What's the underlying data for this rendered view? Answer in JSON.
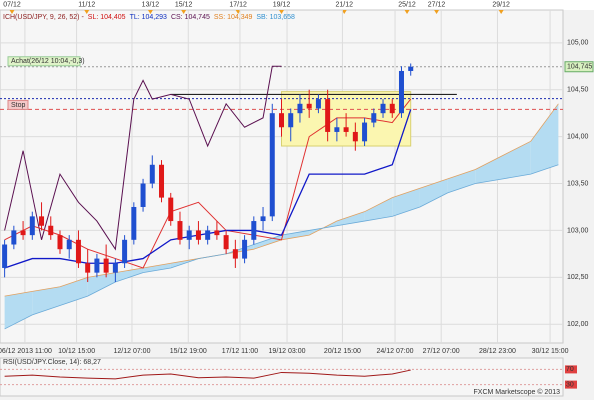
{
  "chart_data": {
    "type": "candlestick",
    "header": [
      {
        "text": "ICH(USD/JPY, 9, 26, 52) -",
        "color": "#8b1a1a"
      },
      {
        "text": "SL: 104,405",
        "color": "#d01010"
      },
      {
        "text": "TL: 104,293",
        "color": "#1030c0"
      },
      {
        "text": "CS: 104,745",
        "color": "#5a1050"
      },
      {
        "text": "SS: 104,349",
        "color": "#e08020"
      },
      {
        "text": "SB: 103,658",
        "color": "#3090d0"
      }
    ],
    "top_dates": {
      "x": [
        0.8,
        8.9,
        15.8,
        19.4,
        25.3,
        30,
        36.8,
        43.6,
        46.8,
        53.8
      ],
      "labels": [
        "07/12",
        "11/12",
        "13/12",
        "15/12",
        "17/12",
        "19/12",
        "21/12",
        "25/12",
        "27/12",
        "29/12"
      ]
    },
    "xlim": [
      -0.5,
      60.5
    ],
    "xticks": [
      {
        "value": 2.2,
        "label": "06/12 2013 11:00"
      },
      {
        "value": 7.8,
        "label": "10/12 15:00"
      },
      {
        "value": 13.8,
        "label": "12/12 07:00"
      },
      {
        "value": 19.9,
        "label": "15/12 19:00"
      },
      {
        "value": 25.5,
        "label": "17/12 11:00"
      },
      {
        "value": 30.6,
        "label": "19/12 03:00"
      },
      {
        "value": 36.6,
        "label": "20/12 15:00"
      },
      {
        "value": 42.3,
        "label": "24/12 07:00"
      },
      {
        "value": 47.3,
        "label": "27/12 07:00"
      },
      {
        "value": 53.4,
        "label": "28/12 23:00"
      },
      {
        "value": 59.1,
        "label": "30/12 15:00"
      }
    ],
    "ylim": [
      101.8,
      105.35
    ],
    "yticks": [
      {
        "value": 102,
        "label": "102,00"
      },
      {
        "value": 102.5,
        "label": "102,50"
      },
      {
        "value": 103,
        "label": "103,00"
      },
      {
        "value": 103.5,
        "label": "103,50"
      },
      {
        "value": 104,
        "label": "104,00"
      },
      {
        "value": 104.5,
        "label": "104,50"
      },
      {
        "value": 105,
        "label": "105,00"
      }
    ],
    "grid": true,
    "up_color": "#1f4fd0",
    "down_color": "#e01818",
    "x": [
      0,
      1,
      2,
      3,
      4,
      5,
      6,
      7,
      8,
      9,
      10,
      11,
      12,
      13,
      14,
      15,
      16,
      17,
      18,
      19,
      20,
      21,
      22,
      23,
      24,
      25,
      26,
      27,
      28,
      29,
      30,
      31,
      32,
      33,
      34,
      35,
      36,
      37,
      38,
      39,
      40,
      41,
      42,
      43,
      44
    ],
    "open": [
      102.6,
      102.85,
      103.0,
      102.95,
      103.15,
      103.05,
      102.95,
      102.8,
      102.9,
      102.65,
      102.55,
      102.7,
      102.55,
      102.65,
      102.9,
      103.25,
      103.5,
      103.7,
      103.35,
      103.1,
      102.9,
      103.0,
      102.9,
      103.0,
      102.95,
      102.8,
      102.7,
      102.9,
      103.1,
      103.15,
      104.25,
      104.1,
      104.25,
      104.35,
      104.3,
      104.4,
      104.05,
      104.1,
      104.05,
      103.95,
      104.15,
      104.25,
      104.35,
      104.25,
      104.7
    ],
    "high": [
      102.9,
      103.05,
      103.1,
      103.2,
      103.3,
      103.15,
      103.0,
      102.95,
      103.0,
      102.8,
      102.75,
      102.85,
      102.7,
      102.95,
      103.3,
      103.55,
      103.8,
      103.75,
      103.4,
      103.2,
      103.05,
      103.1,
      103.05,
      103.1,
      103.0,
      102.9,
      102.95,
      103.15,
      103.25,
      104.35,
      104.4,
      104.3,
      104.45,
      104.5,
      104.45,
      104.5,
      104.2,
      104.25,
      104.15,
      104.2,
      104.3,
      104.4,
      104.4,
      104.75,
      104.78
    ],
    "low": [
      102.5,
      102.8,
      102.9,
      102.9,
      103.0,
      102.9,
      102.75,
      102.7,
      102.6,
      102.45,
      102.5,
      102.5,
      102.45,
      102.6,
      102.85,
      103.2,
      103.45,
      103.3,
      103.05,
      102.85,
      102.8,
      102.85,
      102.85,
      102.9,
      102.75,
      102.6,
      102.65,
      102.85,
      103.0,
      103.1,
      104.0,
      103.95,
      104.15,
      104.2,
      104.25,
      103.95,
      103.95,
      104.0,
      103.85,
      103.9,
      104.1,
      104.2,
      104.2,
      104.2,
      104.65
    ],
    "close": [
      102.85,
      103.0,
      102.95,
      103.15,
      103.05,
      102.95,
      102.8,
      102.9,
      102.65,
      102.55,
      102.7,
      102.55,
      102.65,
      102.9,
      103.25,
      103.5,
      103.7,
      103.35,
      103.1,
      102.9,
      103.0,
      102.9,
      103.0,
      102.95,
      102.8,
      102.7,
      102.9,
      103.1,
      103.15,
      104.25,
      104.1,
      104.25,
      104.35,
      104.3,
      104.4,
      104.05,
      104.1,
      104.05,
      103.95,
      104.15,
      104.25,
      104.35,
      104.25,
      104.7,
      104.745
    ],
    "cloud": {
      "x": [
        0,
        3,
        6,
        9,
        12,
        15,
        18,
        21,
        24,
        27,
        30,
        33,
        36,
        39,
        42,
        45,
        48,
        51,
        54,
        57,
        60
      ],
      "span_a": [
        102.3,
        102.35,
        102.4,
        102.5,
        102.55,
        102.6,
        102.65,
        102.7,
        102.75,
        102.8,
        102.9,
        102.95,
        103.1,
        103.2,
        103.35,
        103.45,
        103.55,
        103.65,
        103.8,
        103.95,
        104.35
      ],
      "span_b": [
        101.95,
        102.1,
        102.2,
        102.3,
        102.45,
        102.55,
        102.6,
        102.7,
        102.75,
        102.85,
        102.95,
        103.0,
        103.05,
        103.1,
        103.15,
        103.25,
        103.4,
        103.5,
        103.55,
        103.6,
        103.7
      ],
      "fill": "#b4dcf2",
      "color_a": "#e0a060",
      "color_b": "#6aaad8"
    },
    "tenkan": {
      "x": [
        0,
        3,
        6,
        9,
        12,
        15,
        18,
        21,
        24,
        27,
        30,
        33,
        36,
        39,
        42,
        44
      ],
      "values": [
        102.9,
        103.05,
        102.95,
        102.8,
        102.7,
        102.6,
        103.2,
        103.3,
        103.0,
        102.95,
        102.9,
        104.0,
        104.2,
        104.2,
        104.15,
        104.4
      ],
      "color": "#e03030"
    },
    "kijun": {
      "x": [
        0,
        3,
        6,
        9,
        12,
        15,
        18,
        21,
        24,
        27,
        30,
        33,
        36,
        39,
        42,
        44
      ],
      "values": [
        102.6,
        102.7,
        102.7,
        102.65,
        102.65,
        102.7,
        102.9,
        102.95,
        103.0,
        103.0,
        102.95,
        103.6,
        103.6,
        103.6,
        103.7,
        104.29
      ],
      "color": "#1018c8"
    },
    "chikou": {
      "x": [
        0,
        2,
        4,
        6,
        8,
        10,
        12,
        14,
        15,
        16,
        18,
        20,
        22,
        24,
        26,
        28,
        29,
        30
      ],
      "values": [
        103.0,
        103.85,
        102.9,
        103.6,
        103.3,
        103.1,
        102.8,
        104.4,
        104.6,
        104.4,
        104.45,
        104.4,
        103.9,
        104.35,
        104.1,
        104.2,
        104.75,
        104.75
      ],
      "color": "#5a1050"
    },
    "levels": [
      {
        "value": 104.405,
        "color": "#1a2ab0",
        "dash": "2,2"
      },
      {
        "value": 104.29,
        "color": "#e05050",
        "dash": "4,3"
      },
      {
        "value": 104.745,
        "color": "#999999",
        "dash": "2,2"
      }
    ],
    "resistance": {
      "value": 104.45,
      "from": 18,
      "to": 49,
      "color": "#222222"
    },
    "zone": {
      "x": [
        30,
        44
      ],
      "y": [
        103.9,
        104.48
      ],
      "color": "#fbf6b0"
    },
    "entry_label": "Achat(26/12 10:04,-0,3)",
    "stop_label": "Stop",
    "last_price": {
      "value": 104.745,
      "label": "104,745"
    },
    "rsi": {
      "title": "RSI(USD/JPY.Close, 14): 68,27",
      "ylim": [
        0,
        100
      ],
      "yticks": [
        30,
        70
      ],
      "color": "#a01818",
      "x": [
        0,
        3,
        6,
        9,
        12,
        15,
        18,
        21,
        24,
        27,
        30,
        33,
        36,
        39,
        42,
        44
      ],
      "values": [
        52,
        55,
        50,
        47,
        45,
        55,
        58,
        48,
        50,
        47,
        62,
        60,
        55,
        52,
        58,
        68.27
      ]
    },
    "footer": "FXCM Marketscope © 2013"
  }
}
